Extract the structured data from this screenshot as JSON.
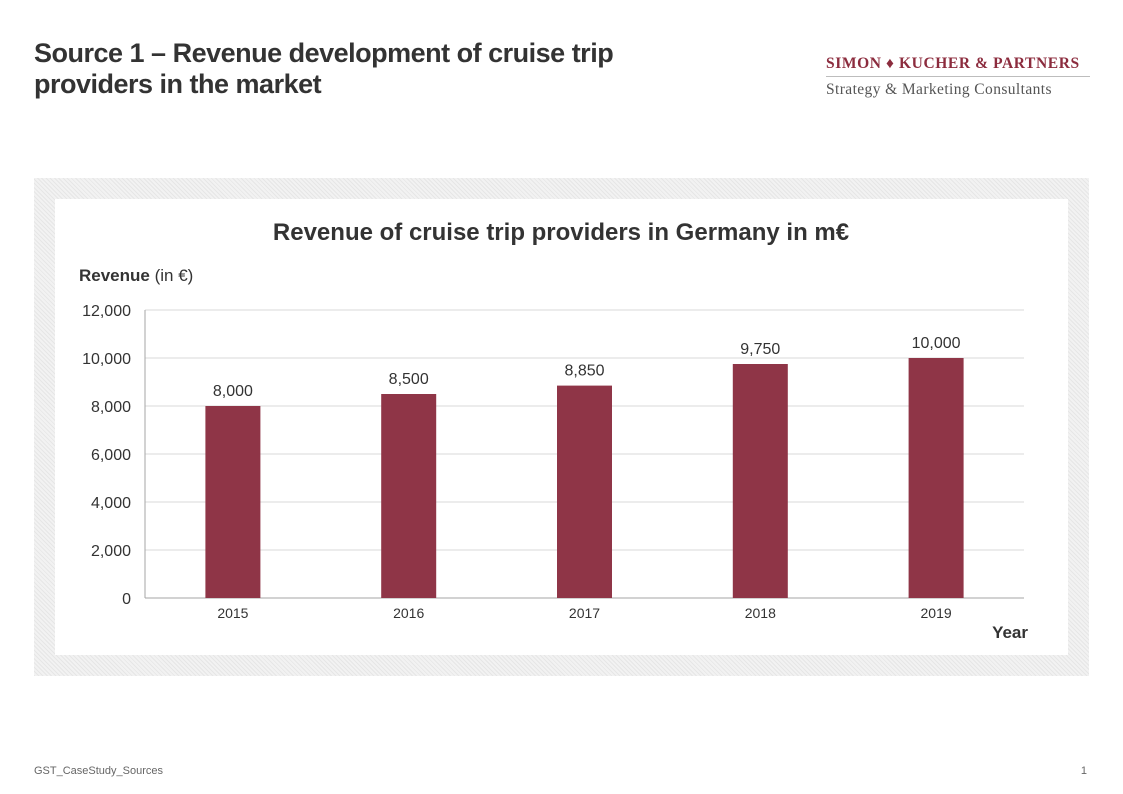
{
  "slide": {
    "title_line1": "Source 1 – Revenue development of cruise trip",
    "title_line2": "providers in the market"
  },
  "logo": {
    "name": "SIMON ♦ KUCHER & PARTNERS",
    "tagline": "Strategy & Marketing Consultants"
  },
  "colors": {
    "accent": "#8f3547",
    "grid": "#d9d9d9",
    "axis": "#a6a6a6",
    "text": "#333333"
  },
  "chart_data": {
    "type": "bar",
    "title": "Revenue of cruise trip providers in Germany in m€",
    "ylabel_bold": "Revenue",
    "ylabel_rest": " (in €)",
    "xlabel": "Year",
    "categories": [
      "2015",
      "2016",
      "2017",
      "2018",
      "2019"
    ],
    "values": [
      8000,
      8500,
      8850,
      9750,
      10000
    ],
    "value_labels": [
      "8,000",
      "8,500",
      "8,850",
      "9,750",
      "10,000"
    ],
    "yticks": [
      0,
      2000,
      4000,
      6000,
      8000,
      10000,
      12000
    ],
    "ytick_labels": [
      "0",
      "2,000",
      "4,000",
      "6,000",
      "8,000",
      "10,000",
      "12,000"
    ],
    "ylim": [
      0,
      12000
    ],
    "grid": true,
    "legend": "none"
  },
  "footer": {
    "doc_name": "GST_CaseStudy_Sources",
    "page_number": "1"
  }
}
